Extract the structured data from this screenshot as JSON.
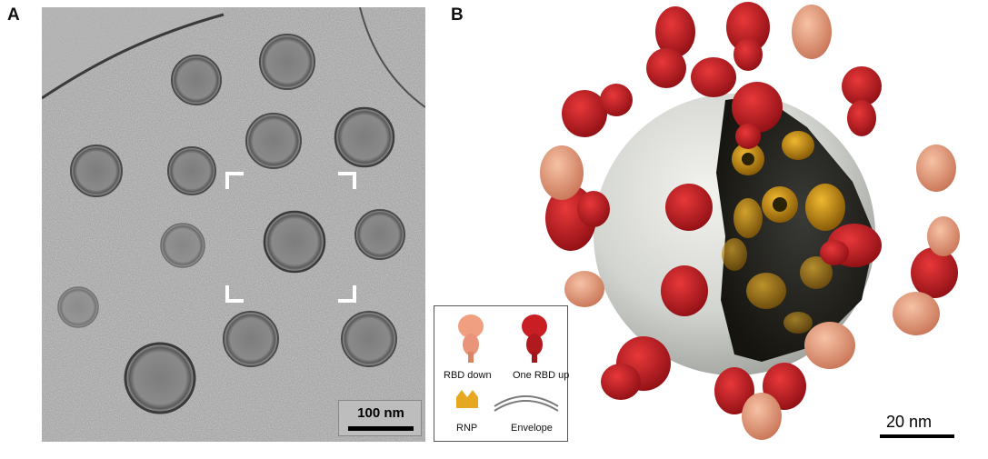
{
  "panels": {
    "a": {
      "letter": "A",
      "scale_label": "100 nm"
    },
    "b": {
      "letter": "B",
      "scale_label": "20 nm"
    }
  },
  "legend": {
    "items": [
      {
        "label": "RBD down",
        "color": "#f0a080"
      },
      {
        "label": "One RBD up",
        "color": "#c81e24"
      },
      {
        "label": "RNP",
        "color": "#e6a820"
      },
      {
        "label": "Envelope",
        "color": "#8c8c8c"
      }
    ]
  },
  "colors": {
    "rbd_down": "#f0a080",
    "rbd_up": "#c81e24",
    "rnp": "#e6a820",
    "envelope": "#d8dad6",
    "micrograph_bg": "#a9a9a9"
  }
}
